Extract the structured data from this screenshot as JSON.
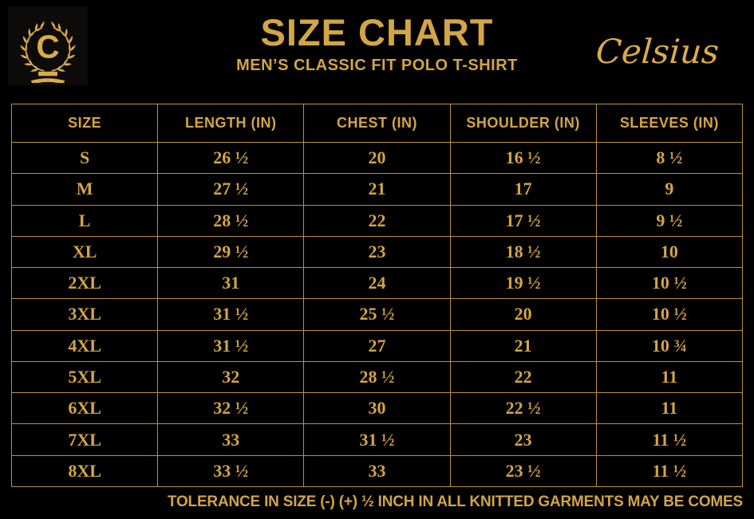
{
  "brand": {
    "logo_letter": "C",
    "name": "Celsius"
  },
  "header": {
    "title": "SIZE CHART",
    "subtitle": "MEN’S CLASSIC FIT POLO T-SHIRT"
  },
  "footer": {
    "note": "TOLERANCE IN SIZE (-) (+) ½ INCH IN ALL KNITTED GARMENTS MAY BE COMES"
  },
  "colors": {
    "gold": "#D3A544",
    "gold_bright": "#DBAB48",
    "border": "#BD9139",
    "background": "#000000",
    "logo_background": "#0C0B09"
  },
  "chart_data": {
    "type": "table",
    "title": "SIZE CHART",
    "subtitle": "MEN’S CLASSIC FIT POLO T-SHIRT",
    "columns": [
      "SIZE",
      "LENGTH (IN)",
      "CHEST (IN)",
      "SHOULDER (IN)",
      "SLEEVES (IN)"
    ],
    "rows": [
      [
        "S",
        "26 ½",
        "20",
        "16 ½",
        "8 ½"
      ],
      [
        "M",
        "27 ½",
        "21",
        "17",
        "9"
      ],
      [
        "L",
        "28 ½",
        "22",
        "17 ½",
        "9 ½"
      ],
      [
        "XL",
        "29 ½",
        "23",
        "18 ½",
        "10"
      ],
      [
        "2XL",
        "31",
        "24",
        "19 ½",
        "10 ½"
      ],
      [
        "3XL",
        "31 ½",
        "25 ½",
        "20",
        "10 ½"
      ],
      [
        "4XL",
        "31 ½",
        "27",
        "21",
        "10 ¾"
      ],
      [
        "5XL",
        "32",
        "28 ½",
        "22",
        "11"
      ],
      [
        "6XL",
        "32 ½",
        "30",
        "22 ½",
        "11"
      ],
      [
        "7XL",
        "33",
        "31 ½",
        "23",
        "11 ½"
      ],
      [
        "8XL",
        "33 ½",
        "33",
        "23 ½",
        "11 ½"
      ]
    ]
  }
}
